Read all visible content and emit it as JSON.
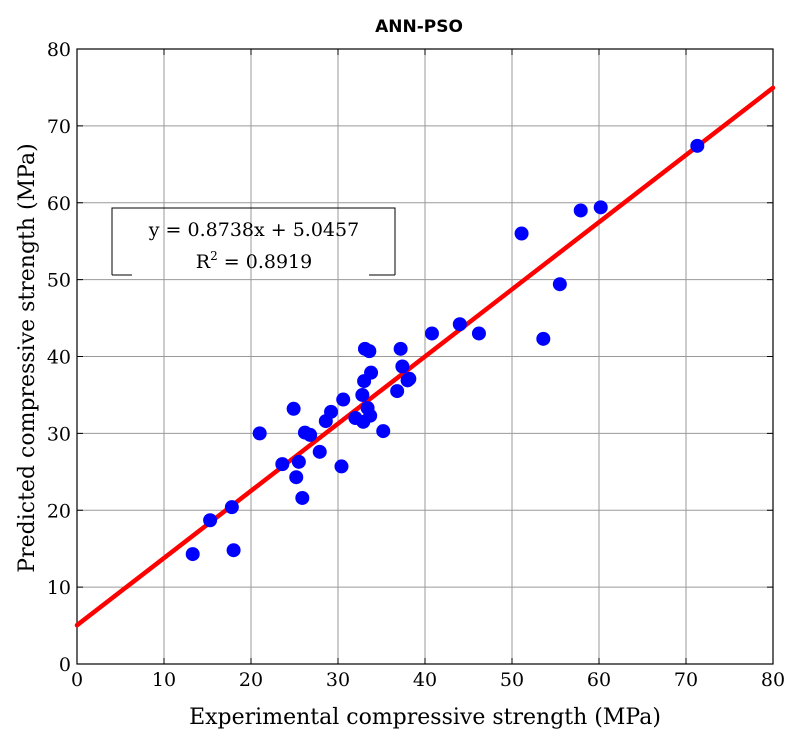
{
  "chart_data": {
    "type": "scatter",
    "title": "ANN-PSO",
    "xlabel": "Experimental compressive strength (MPa)",
    "ylabel": "Predicted compressive strength (MPa)",
    "xlim": [
      0,
      80
    ],
    "ylim": [
      0,
      80
    ],
    "xticks": [
      0,
      10,
      20,
      30,
      40,
      50,
      60,
      70,
      80
    ],
    "yticks": [
      0,
      10,
      20,
      30,
      40,
      50,
      60,
      70,
      80
    ],
    "grid": true,
    "point_color": "#0000ff",
    "fit_line_color": "#ff0000",
    "fit": {
      "slope": 0.8738,
      "intercept": 5.0457
    },
    "annotation": {
      "equation": "y = 0.8738x + 5.0457",
      "r2_prefix": "R",
      "r2_sup": "2",
      "r2_suffix": " = 0.8919"
    },
    "points": [
      [
        13.3,
        14.3
      ],
      [
        15.3,
        18.7
      ],
      [
        17.8,
        20.4
      ],
      [
        18.0,
        14.8
      ],
      [
        21.0,
        30.0
      ],
      [
        23.6,
        26.0
      ],
      [
        24.9,
        33.2
      ],
      [
        25.2,
        24.3
      ],
      [
        25.5,
        26.3
      ],
      [
        25.9,
        21.6
      ],
      [
        26.2,
        30.1
      ],
      [
        26.8,
        29.8
      ],
      [
        27.9,
        27.6
      ],
      [
        28.6,
        31.6
      ],
      [
        29.2,
        32.8
      ],
      [
        30.4,
        25.7
      ],
      [
        30.6,
        34.4
      ],
      [
        32.0,
        32.0
      ],
      [
        32.8,
        35.0
      ],
      [
        32.9,
        31.5
      ],
      [
        33.0,
        36.8
      ],
      [
        33.1,
        41.0
      ],
      [
        33.4,
        33.3
      ],
      [
        33.6,
        40.7
      ],
      [
        33.7,
        32.3
      ],
      [
        33.8,
        37.9
      ],
      [
        35.2,
        30.3
      ],
      [
        36.8,
        35.5
      ],
      [
        37.2,
        41.0
      ],
      [
        37.4,
        38.7
      ],
      [
        38.0,
        36.9
      ],
      [
        38.2,
        37.1
      ],
      [
        40.8,
        43.0
      ],
      [
        44.0,
        44.2
      ],
      [
        46.2,
        43.0
      ],
      [
        51.1,
        56.0
      ],
      [
        53.6,
        42.3
      ],
      [
        55.5,
        49.4
      ],
      [
        57.9,
        59.0
      ],
      [
        60.2,
        59.4
      ],
      [
        71.3,
        67.4
      ]
    ]
  }
}
